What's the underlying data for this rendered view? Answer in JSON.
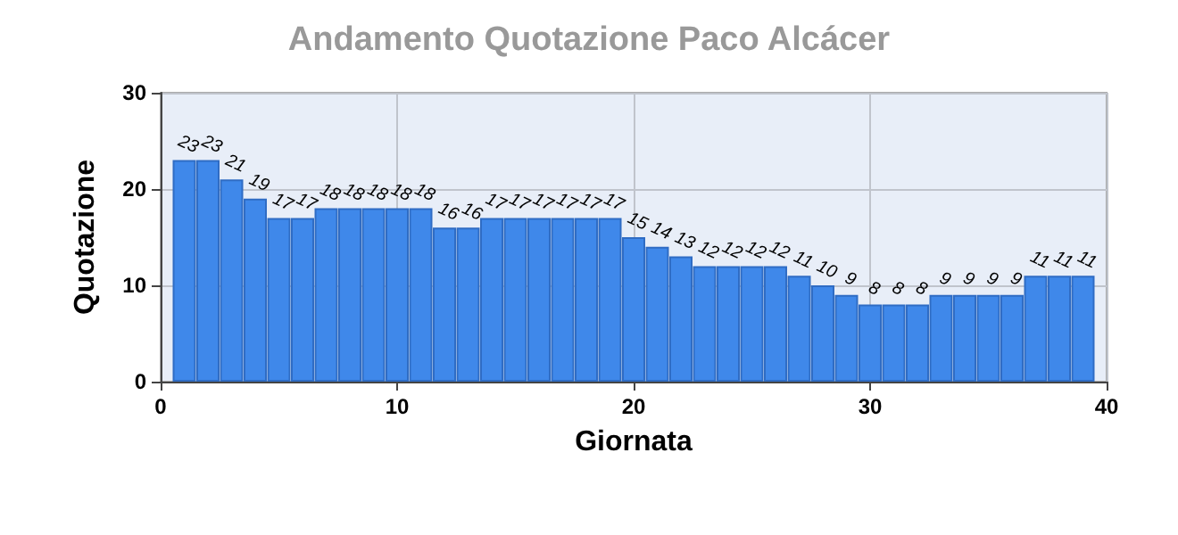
{
  "chart_data": {
    "type": "bar",
    "title": "Andamento Quotazione Paco Alcácer",
    "xlabel": "Giornata",
    "ylabel": "Quotazione",
    "x": [
      1,
      2,
      3,
      4,
      5,
      6,
      7,
      8,
      9,
      10,
      11,
      12,
      13,
      14,
      15,
      16,
      17,
      18,
      19,
      20,
      21,
      22,
      23,
      24,
      25,
      26,
      27,
      28,
      29,
      30,
      31,
      32,
      33,
      34,
      35,
      36,
      37,
      38,
      39
    ],
    "values": [
      23,
      23,
      21,
      19,
      17,
      17,
      18,
      18,
      18,
      18,
      18,
      16,
      16,
      17,
      17,
      17,
      17,
      17,
      17,
      15,
      14,
      13,
      12,
      12,
      12,
      12,
      11,
      10,
      9,
      8,
      8,
      8,
      9,
      9,
      9,
      9,
      11,
      11,
      11
    ],
    "color": "#3f88ea",
    "xlim": [
      0,
      40
    ],
    "xticks": [
      0,
      10,
      20,
      30,
      40
    ],
    "ylim": [
      0,
      30
    ],
    "yticks": [
      0,
      10,
      20,
      30
    ],
    "grid": true,
    "data_labels": true
  }
}
